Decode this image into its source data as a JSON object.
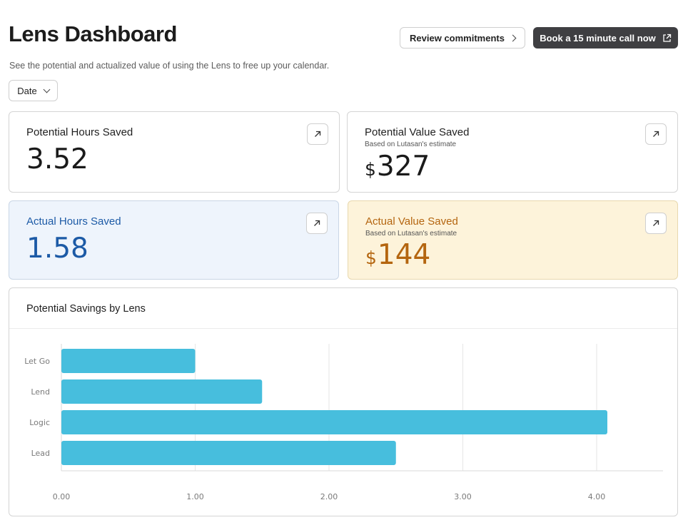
{
  "header": {
    "title": "Lens Dashboard",
    "subtitle": "See the potential and actualized value of using the Lens to free up your calendar.",
    "review_label": "Review commitments",
    "book_label": "Book a 15 minute call now"
  },
  "filter": {
    "date_label": "Date"
  },
  "cards": {
    "potential_hours": {
      "label": "Potential Hours Saved",
      "value": "3.52"
    },
    "potential_value": {
      "label": "Potential Value Saved",
      "note": "Based on Lutasan's estimate",
      "currency": "$",
      "value": "327"
    },
    "actual_hours": {
      "label": "Actual Hours Saved",
      "value": "1.58"
    },
    "actual_value": {
      "label": "Actual Value Saved",
      "note": "Based on Lutasan's estimate",
      "currency": "$",
      "value": "144"
    }
  },
  "colors": {
    "bar": "#47bedd",
    "blue_text": "#1c5aa6",
    "amber_text": "#b4650f"
  },
  "chart_data": {
    "type": "bar",
    "orientation": "horizontal",
    "title": "Potential Savings by Lens",
    "categories": [
      "Let Go",
      "Lend",
      "Logic",
      "Lead"
    ],
    "values": [
      1.0,
      1.5,
      4.08,
      2.5
    ],
    "x_ticks": [
      "0.00",
      "1.00",
      "2.00",
      "3.00",
      "4.00"
    ],
    "xlim": [
      0,
      4.5
    ],
    "grid": true,
    "legend": "none"
  }
}
